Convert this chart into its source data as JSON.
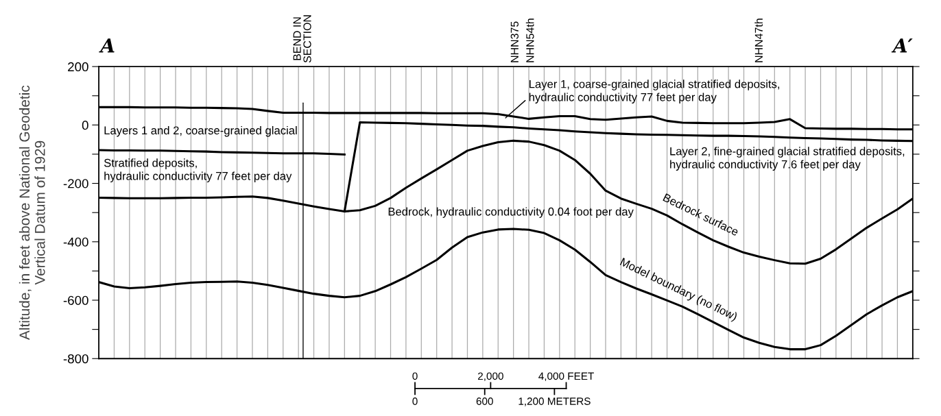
{
  "chart_data": {
    "type": "line",
    "ylabel": "Altitude, in feet above National Geodetic\nVertical Datum of 1929",
    "categories": [
      null,
      null,
      null,
      null,
      null,
      null,
      null,
      null,
      null,
      null,
      null,
      null,
      null,
      null,
      null,
      null,
      null,
      null,
      null,
      null,
      null,
      null,
      null,
      null,
      null,
      null,
      null,
      null,
      null,
      null,
      null,
      null,
      null,
      null,
      null,
      null,
      null,
      null,
      null,
      null,
      null,
      null,
      null,
      null,
      null,
      null,
      null,
      null,
      null,
      null,
      null,
      null,
      null,
      null
    ],
    "ylim": [
      -800,
      200
    ],
    "yticks": [
      200,
      {
        "value": 100,
        "label": null
      },
      0,
      {
        "value": -100,
        "label": null
      },
      -200,
      {
        "value": -300,
        "label": null
      },
      -400,
      {
        "value": -500,
        "label": null
      },
      -600,
      {
        "value": -700,
        "label": null
      },
      -800
    ],
    "tick_labels": "y",
    "grid": "x",
    "marker": "none",
    "line_style": "solid",
    "series": [
      {
        "color": "#000000",
        "values": [
          61,
          61,
          61,
          60,
          60,
          60,
          59,
          59,
          58,
          57,
          55,
          48,
          42,
          42,
          42,
          41,
          41,
          41,
          41,
          41,
          41,
          41,
          40,
          40,
          40,
          40,
          37,
          29,
          21,
          26,
          30,
          30,
          20,
          18,
          22,
          26,
          29,
          14,
          8,
          7,
          6,
          6,
          6,
          8,
          10,
          20,
          -11,
          -12,
          -13,
          -13,
          -14,
          -14,
          -15,
          -15
        ]
      },
      {
        "color": "#000000",
        "values": [
          -86,
          -87,
          -87,
          -88,
          -88,
          -89,
          -90,
          -91,
          -93,
          -94,
          -95,
          -96,
          -97,
          -97,
          -97,
          -99,
          -101,
          null,
          null,
          null,
          null,
          null,
          null,
          null,
          null,
          null,
          null,
          null,
          null,
          null,
          null,
          null,
          null,
          null,
          null,
          null,
          null,
          null,
          null,
          null,
          null,
          null,
          null,
          null,
          null,
          null,
          null,
          null,
          null,
          null,
          null,
          null,
          null,
          null
        ]
      },
      {
        "color": "#000000",
        "values": [
          null,
          null,
          null,
          null,
          null,
          null,
          null,
          null,
          null,
          null,
          null,
          null,
          null,
          null,
          null,
          null,
          -296,
          9,
          8,
          7,
          6,
          4,
          2,
          0,
          -2,
          -3,
          -6,
          -8,
          -12,
          -15,
          -18,
          -22,
          -25,
          -28,
          -30,
          -32,
          -33,
          -34,
          -35,
          -36,
          -37,
          -37,
          -38,
          -39,
          -41,
          -43,
          -45,
          -46,
          -48,
          -50,
          -51,
          -53,
          -54,
          -55
        ]
      },
      {
        "name": "Bedrock surface",
        "color": "#000000",
        "values": [
          -249,
          -250,
          -251,
          -251,
          -251,
          -250,
          -249,
          -249,
          -248,
          -246,
          -245,
          -250,
          -259,
          -269,
          -279,
          -288,
          -296,
          -292,
          -277,
          -250,
          -215,
          -183,
          -152,
          -120,
          -88,
          -72,
          -59,
          -54,
          -57,
          -69,
          -88,
          -120,
          -167,
          -225,
          -252,
          -270,
          -287,
          -310,
          -340,
          -368,
          -395,
          -417,
          -437,
          -451,
          -463,
          -474,
          -475,
          -458,
          -426,
          -389,
          -352,
          -320,
          -289,
          -252
        ]
      },
      {
        "name": "Model boundary (no flow)",
        "color": "#000000",
        "values": [
          -538,
          -553,
          -559,
          -556,
          -551,
          -545,
          -540,
          -538,
          -537,
          -536,
          -540,
          -548,
          -558,
          -568,
          -578,
          -585,
          -590,
          -585,
          -569,
          -546,
          -521,
          -492,
          -462,
          -420,
          -384,
          -368,
          -358,
          -356,
          -359,
          -370,
          -395,
          -427,
          -469,
          -514,
          -538,
          -560,
          -580,
          -601,
          -622,
          -648,
          -675,
          -702,
          -728,
          -746,
          -760,
          -768,
          -768,
          -754,
          -722,
          -685,
          -648,
          -618,
          -590,
          -569
        ]
      }
    ],
    "annotations": [
      "A",
      "A′",
      "Layers 1 and 2, coarse-grained glacial",
      "Stratified deposits,\nhydraulic conductivity 77 feet per day",
      "Layer 1, coarse-grained glacial stratified deposits,\nhydraulic conductivity 77 feet per day",
      "Layer 2, fine-grained glacial stratified deposits,\nhydraulic conductivity 7.6 feet per day",
      "Bedrock, hydraulic conductivity 0.04 foot per day",
      "BEND IN\nSECTION",
      "NHN375",
      "NHN54th",
      "NHN47th",
      "0",
      "2,000",
      "4,000 FEET",
      "0",
      "600",
      "1,200 METERS"
    ]
  }
}
